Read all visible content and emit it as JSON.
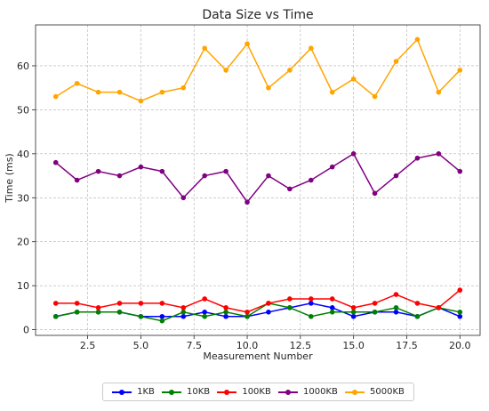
{
  "chart_data": {
    "type": "line",
    "title": "Data Size vs Time",
    "xlabel": "Measurement Number",
    "ylabel": "Time (ms)",
    "xlim": [
      0.05,
      20.95
    ],
    "ylim": [
      -1.3,
      69.3
    ],
    "xticks": [
      2.5,
      5.0,
      7.5,
      10.0,
      12.5,
      15.0,
      17.5,
      20.0
    ],
    "yticks": [
      0,
      10,
      20,
      30,
      40,
      50,
      60
    ],
    "grid": true,
    "grid_style": "dashed",
    "legend_position": "bottom-center",
    "x": [
      1,
      2,
      3,
      4,
      5,
      6,
      7,
      8,
      9,
      10,
      11,
      12,
      13,
      14,
      15,
      16,
      17,
      18,
      19,
      20
    ],
    "series": [
      {
        "name": "1KB",
        "color": "#0000ff",
        "values": [
          3,
          4,
          4,
          4,
          3,
          3,
          3,
          4,
          3,
          3,
          4,
          5,
          6,
          5,
          3,
          4,
          4,
          3,
          5,
          3
        ]
      },
      {
        "name": "10KB",
        "color": "#008000",
        "values": [
          3,
          4,
          4,
          4,
          3,
          2,
          4,
          3,
          4,
          3,
          6,
          5,
          3,
          4,
          4,
          4,
          5,
          3,
          5,
          4
        ]
      },
      {
        "name": "100KB",
        "color": "#ff0000",
        "values": [
          6,
          6,
          5,
          6,
          6,
          6,
          5,
          7,
          5,
          4,
          6,
          7,
          7,
          7,
          5,
          6,
          8,
          6,
          5,
          9
        ]
      },
      {
        "name": "1000KB",
        "color": "#800080",
        "values": [
          38,
          34,
          36,
          35,
          37,
          36,
          30,
          35,
          36,
          29,
          35,
          32,
          34,
          37,
          40,
          31,
          35,
          39,
          40,
          36
        ]
      },
      {
        "name": "5000KB",
        "color": "#ffa500",
        "values": [
          53,
          56,
          54,
          54,
          52,
          54,
          55,
          64,
          59,
          65,
          55,
          59,
          64,
          54,
          57,
          53,
          61,
          66,
          54,
          59
        ]
      }
    ]
  }
}
